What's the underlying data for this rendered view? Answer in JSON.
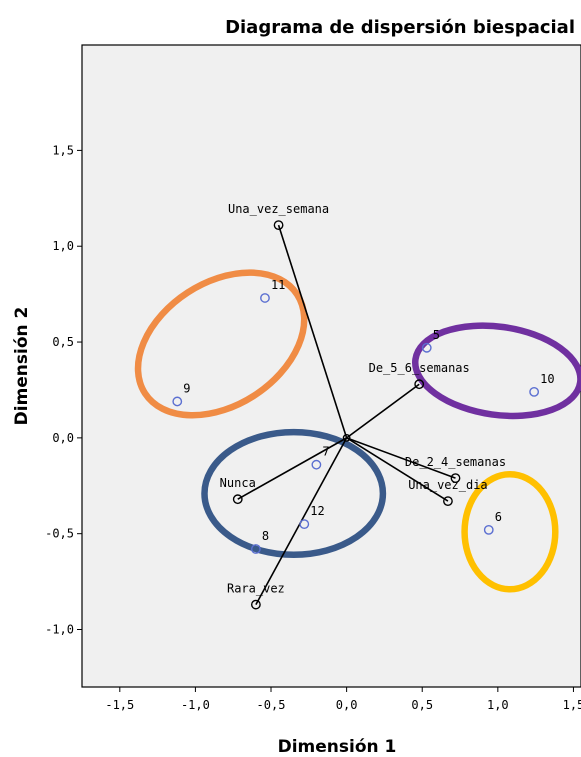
{
  "chart_data": {
    "type": "scatter",
    "title": "Diagrama de dispersión biespacial",
    "xlabel": "Dimensión 1",
    "ylabel": "Dimensión 2",
    "xlim": [
      -1.75,
      1.55
    ],
    "ylim": [
      -1.3,
      2.05
    ],
    "x_ticks": [
      -1.5,
      -1.0,
      -0.5,
      0.0,
      0.5,
      1.0,
      1.5
    ],
    "x_tick_labels": [
      "-1,5",
      "-1,0",
      "-0,5",
      "0,0",
      "0,5",
      "1,0",
      "1,5"
    ],
    "y_ticks": [
      -1.0,
      -0.5,
      0.0,
      0.5,
      1.0,
      1.5
    ],
    "y_tick_labels": [
      "-1,0",
      "-0,5",
      "0,0",
      "0,5",
      "1,0",
      "1,5"
    ],
    "grid": false,
    "background_color": "#f0f0f0",
    "vectors": [
      {
        "label": "Una_vez_semana",
        "x": -0.45,
        "y": 1.11
      },
      {
        "label": "De_5_6_semanas",
        "x": 0.48,
        "y": 0.28
      },
      {
        "label": "De_2_4_semanas",
        "x": 0.72,
        "y": -0.21
      },
      {
        "label": "Una_vez_dia",
        "x": 0.67,
        "y": -0.33
      },
      {
        "label": "Nunca",
        "x": -0.72,
        "y": -0.32
      },
      {
        "label": "Rara_vez",
        "x": -0.6,
        "y": -0.87
      }
    ],
    "cases": [
      {
        "label": "11",
        "x": -0.54,
        "y": 0.73
      },
      {
        "label": "9",
        "x": -1.12,
        "y": 0.19
      },
      {
        "label": "5",
        "x": 0.53,
        "y": 0.47
      },
      {
        "label": "10",
        "x": 1.24,
        "y": 0.24
      },
      {
        "label": "7",
        "x": -0.2,
        "y": -0.14
      },
      {
        "label": "12",
        "x": -0.28,
        "y": -0.45
      },
      {
        "label": "8",
        "x": -0.6,
        "y": -0.58
      },
      {
        "label": "6",
        "x": 0.94,
        "y": -0.48
      }
    ],
    "highlight_ellipses": [
      {
        "color": "#f08c45",
        "cx": -0.83,
        "cy": 0.49,
        "rx": 0.6,
        "ry": 0.32,
        "rotation_deg": -33
      },
      {
        "color": "#7030a0",
        "cx": 1.0,
        "cy": 0.35,
        "rx": 0.55,
        "ry": 0.23,
        "rotation_deg": 8
      },
      {
        "color": "#3a5a8a",
        "cx": -0.35,
        "cy": -0.29,
        "rx": 0.59,
        "ry": 0.32,
        "rotation_deg": 0
      },
      {
        "color": "#ffc000",
        "cx": 1.08,
        "cy": -0.49,
        "rx": 0.3,
        "ry": 0.3,
        "rotation_deg": 0
      }
    ],
    "colors": {
      "vector_line": "#000000",
      "vector_marker": "#000000",
      "case_marker": "#5b6fd1"
    }
  }
}
